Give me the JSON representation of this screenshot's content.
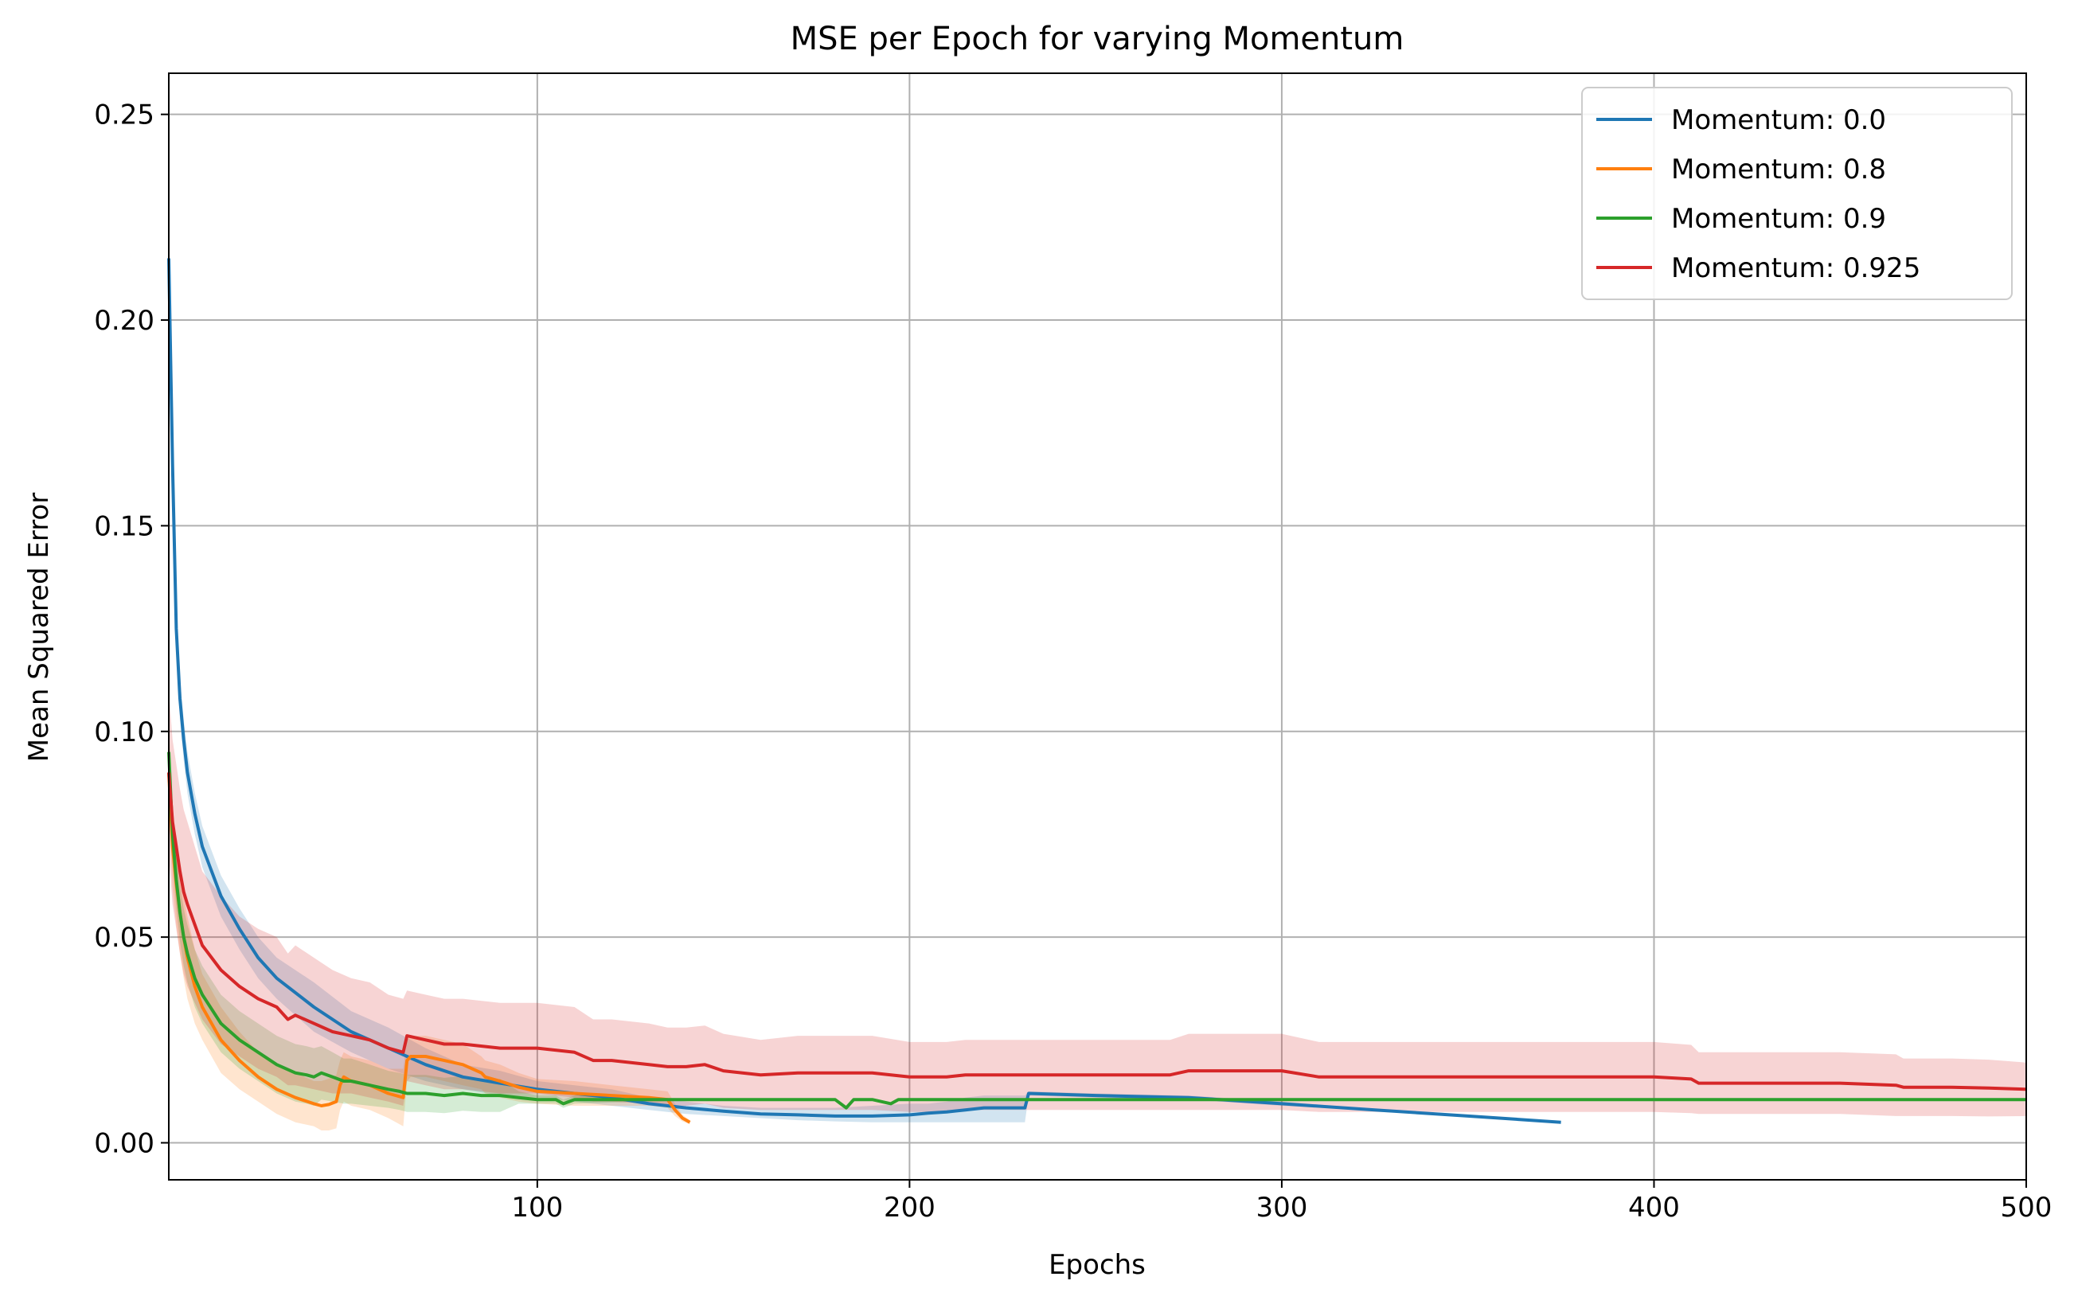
{
  "chart_data": {
    "type": "line",
    "title": "MSE per Epoch for varying Momentum",
    "xlabel": "Epochs",
    "ylabel": "Mean Squared Error",
    "xlim": [
      1,
      500
    ],
    "ylim": [
      -0.009,
      0.26
    ],
    "xticks": [
      100,
      200,
      300,
      400,
      500
    ],
    "xtick_labels": [
      "100",
      "200",
      "300",
      "400",
      "500"
    ],
    "yticks": [
      0.0,
      0.05,
      0.1,
      0.15,
      0.2,
      0.25
    ],
    "ytick_labels": [
      "0.00",
      "0.05",
      "0.10",
      "0.15",
      "0.20",
      "0.25"
    ],
    "grid": true,
    "legend_position": "top-right",
    "series": [
      {
        "name": "Momentum: 0.0",
        "color": "#1f77b4",
        "x": [
          1,
          2,
          3,
          4,
          5,
          6,
          8,
          10,
          15,
          20,
          25,
          30,
          40,
          50,
          60,
          70,
          80,
          90,
          100,
          110,
          120,
          130,
          140,
          150,
          160,
          170,
          180,
          190,
          200,
          205,
          210,
          215,
          220,
          225,
          231,
          232,
          250,
          275,
          300,
          325,
          350,
          375
        ],
        "y": [
          0.215,
          0.165,
          0.125,
          0.108,
          0.098,
          0.09,
          0.08,
          0.072,
          0.06,
          0.052,
          0.045,
          0.04,
          0.033,
          0.027,
          0.023,
          0.019,
          0.016,
          0.0145,
          0.013,
          0.012,
          0.011,
          0.0095,
          0.0085,
          0.0077,
          0.007,
          0.0068,
          0.0065,
          0.0065,
          0.0068,
          0.0072,
          0.0075,
          0.008,
          0.0085,
          0.0085,
          0.0085,
          0.012,
          0.0115,
          0.011,
          0.0095,
          0.008,
          0.0065,
          0.005
        ],
        "lower": [
          0.21,
          0.16,
          0.12,
          0.103,
          0.093,
          0.085,
          0.075,
          0.067,
          0.055,
          0.047,
          0.04,
          0.035,
          0.027,
          0.022,
          0.018,
          0.015,
          0.013,
          0.0115,
          0.011,
          0.01,
          0.009,
          0.008,
          0.007,
          0.0065,
          0.006,
          0.0055,
          0.0052,
          0.005,
          0.005,
          0.005,
          0.005,
          0.005,
          0.005,
          0.005,
          0.005,
          0.0115,
          0.011,
          0.0105,
          0.009,
          0.0078,
          0.0063,
          0.0048
        ],
        "upper": [
          0.22,
          0.17,
          0.13,
          0.113,
          0.103,
          0.095,
          0.085,
          0.077,
          0.065,
          0.057,
          0.05,
          0.045,
          0.039,
          0.032,
          0.028,
          0.023,
          0.019,
          0.0175,
          0.015,
          0.014,
          0.013,
          0.011,
          0.01,
          0.009,
          0.0085,
          0.0085,
          0.0085,
          0.009,
          0.0095,
          0.0095,
          0.01,
          0.011,
          0.0115,
          0.0115,
          0.0115,
          0.0125,
          0.012,
          0.0115,
          0.01,
          0.0082,
          0.0067,
          0.0052
        ]
      },
      {
        "name": "Momentum: 0.8",
        "color": "#ff7f0e",
        "x": [
          1,
          2,
          3,
          4,
          5,
          6,
          8,
          10,
          15,
          20,
          25,
          30,
          35,
          40,
          42,
          44,
          46,
          47,
          48,
          50,
          55,
          60,
          64,
          65,
          66,
          70,
          75,
          80,
          85,
          86,
          90,
          95,
          100,
          110,
          120,
          130,
          135,
          137,
          139,
          141
        ],
        "y": [
          0.09,
          0.072,
          0.063,
          0.056,
          0.05,
          0.045,
          0.038,
          0.033,
          0.025,
          0.02,
          0.016,
          0.013,
          0.011,
          0.0095,
          0.009,
          0.0093,
          0.01,
          0.014,
          0.016,
          0.015,
          0.014,
          0.012,
          0.011,
          0.02,
          0.021,
          0.021,
          0.02,
          0.019,
          0.017,
          0.016,
          0.015,
          0.0135,
          0.0125,
          0.012,
          0.0115,
          0.011,
          0.0105,
          0.008,
          0.006,
          0.005
        ],
        "lower": [
          0.08,
          0.062,
          0.053,
          0.046,
          0.04,
          0.035,
          0.029,
          0.025,
          0.017,
          0.013,
          0.01,
          0.007,
          0.005,
          0.004,
          0.003,
          0.003,
          0.0035,
          0.008,
          0.01,
          0.009,
          0.008,
          0.006,
          0.004,
          0.015,
          0.016,
          0.016,
          0.015,
          0.014,
          0.013,
          0.012,
          0.011,
          0.01,
          0.0095,
          0.009,
          0.009,
          0.009,
          0.0085,
          0.0065,
          0.0052,
          0.0045
        ],
        "upper": [
          0.1,
          0.082,
          0.073,
          0.066,
          0.06,
          0.055,
          0.047,
          0.041,
          0.033,
          0.027,
          0.022,
          0.019,
          0.017,
          0.015,
          0.015,
          0.0156,
          0.0165,
          0.02,
          0.022,
          0.021,
          0.02,
          0.018,
          0.018,
          0.025,
          0.026,
          0.026,
          0.025,
          0.024,
          0.021,
          0.02,
          0.019,
          0.017,
          0.0155,
          0.015,
          0.014,
          0.013,
          0.0125,
          0.0095,
          0.0068,
          0.0055
        ]
      },
      {
        "name": "Momentum: 0.9",
        "color": "#2ca02c",
        "x": [
          1,
          2,
          3,
          4,
          5,
          6,
          8,
          10,
          15,
          20,
          25,
          30,
          35,
          38,
          40,
          42,
          45,
          48,
          50,
          55,
          60,
          63,
          65,
          70,
          75,
          80,
          85,
          90,
          95,
          100,
          105,
          107,
          110,
          120,
          130,
          140,
          150,
          160,
          170,
          180,
          183,
          185,
          190,
          195,
          197,
          200,
          250,
          300,
          350,
          400,
          450,
          500
        ],
        "y": [
          0.095,
          0.075,
          0.064,
          0.056,
          0.05,
          0.046,
          0.04,
          0.036,
          0.029,
          0.025,
          0.022,
          0.019,
          0.017,
          0.0165,
          0.016,
          0.017,
          0.016,
          0.015,
          0.015,
          0.014,
          0.013,
          0.0125,
          0.012,
          0.012,
          0.0115,
          0.012,
          0.0115,
          0.0115,
          0.011,
          0.0105,
          0.0105,
          0.0095,
          0.0105,
          0.0105,
          0.0105,
          0.0105,
          0.0105,
          0.0105,
          0.0105,
          0.0105,
          0.0085,
          0.0105,
          0.0105,
          0.0095,
          0.0105,
          0.0105,
          0.0105,
          0.0105,
          0.0105,
          0.0105,
          0.0105,
          0.0105
        ],
        "lower": [
          0.088,
          0.068,
          0.057,
          0.049,
          0.043,
          0.039,
          0.033,
          0.029,
          0.022,
          0.018,
          0.015,
          0.012,
          0.01,
          0.0095,
          0.009,
          0.0105,
          0.01,
          0.0095,
          0.0095,
          0.009,
          0.0085,
          0.008,
          0.0075,
          0.0075,
          0.0072,
          0.0078,
          0.0075,
          0.0075,
          0.0095,
          0.0095,
          0.0095,
          0.0085,
          0.0095,
          0.0098,
          0.01,
          0.0102,
          0.0102,
          0.0102,
          0.0102,
          0.0102,
          0.0082,
          0.0102,
          0.0102,
          0.0092,
          0.0102,
          0.0102,
          0.0102,
          0.0102,
          0.0102,
          0.0102,
          0.0102,
          0.0102
        ],
        "upper": [
          0.102,
          0.082,
          0.071,
          0.063,
          0.057,
          0.053,
          0.047,
          0.043,
          0.036,
          0.032,
          0.029,
          0.026,
          0.024,
          0.0235,
          0.023,
          0.0235,
          0.022,
          0.0205,
          0.0205,
          0.019,
          0.0175,
          0.017,
          0.0165,
          0.0165,
          0.0158,
          0.0162,
          0.0155,
          0.0155,
          0.0125,
          0.0115,
          0.0115,
          0.0105,
          0.0115,
          0.0112,
          0.011,
          0.0108,
          0.0108,
          0.0108,
          0.0108,
          0.0108,
          0.0088,
          0.0108,
          0.0108,
          0.0098,
          0.0108,
          0.0108,
          0.0108,
          0.0108,
          0.0108,
          0.0108,
          0.0108,
          0.0108
        ]
      },
      {
        "name": "Momentum: 0.925",
        "color": "#d62728",
        "x": [
          1,
          2,
          3,
          4,
          5,
          6,
          8,
          10,
          15,
          20,
          25,
          30,
          33,
          35,
          40,
          45,
          50,
          55,
          60,
          64,
          65,
          70,
          75,
          80,
          90,
          100,
          110,
          115,
          120,
          130,
          135,
          140,
          145,
          150,
          160,
          170,
          175,
          180,
          190,
          200,
          210,
          215,
          220,
          250,
          270,
          275,
          300,
          310,
          350,
          400,
          410,
          412,
          450,
          465,
          467,
          480,
          490,
          500
        ],
        "y": [
          0.09,
          0.078,
          0.072,
          0.066,
          0.061,
          0.058,
          0.053,
          0.048,
          0.042,
          0.038,
          0.035,
          0.033,
          0.03,
          0.031,
          0.029,
          0.027,
          0.026,
          0.025,
          0.023,
          0.022,
          0.026,
          0.025,
          0.024,
          0.024,
          0.023,
          0.023,
          0.022,
          0.02,
          0.02,
          0.019,
          0.0185,
          0.0185,
          0.019,
          0.0175,
          0.0165,
          0.017,
          0.017,
          0.017,
          0.017,
          0.016,
          0.016,
          0.0165,
          0.0165,
          0.0165,
          0.0165,
          0.0175,
          0.0175,
          0.016,
          0.016,
          0.016,
          0.0155,
          0.0145,
          0.0145,
          0.014,
          0.0135,
          0.0135,
          0.0133,
          0.013
        ],
        "lower": [
          0.07,
          0.058,
          0.052,
          0.046,
          0.041,
          0.038,
          0.034,
          0.03,
          0.024,
          0.021,
          0.018,
          0.016,
          0.014,
          0.014,
          0.013,
          0.012,
          0.012,
          0.011,
          0.01,
          0.009,
          0.015,
          0.014,
          0.013,
          0.013,
          0.012,
          0.012,
          0.011,
          0.01,
          0.01,
          0.0095,
          0.009,
          0.009,
          0.0095,
          0.0085,
          0.008,
          0.008,
          0.008,
          0.008,
          0.008,
          0.0075,
          0.0075,
          0.008,
          0.008,
          0.008,
          0.008,
          0.008,
          0.008,
          0.0075,
          0.0075,
          0.0075,
          0.0072,
          0.007,
          0.007,
          0.0065,
          0.0065,
          0.0065,
          0.0064,
          0.0065
        ],
        "upper": [
          0.11,
          0.098,
          0.092,
          0.086,
          0.081,
          0.078,
          0.072,
          0.066,
          0.06,
          0.055,
          0.052,
          0.05,
          0.046,
          0.048,
          0.045,
          0.042,
          0.04,
          0.039,
          0.036,
          0.035,
          0.037,
          0.036,
          0.035,
          0.035,
          0.034,
          0.034,
          0.033,
          0.03,
          0.03,
          0.029,
          0.028,
          0.028,
          0.0285,
          0.0265,
          0.025,
          0.026,
          0.026,
          0.026,
          0.026,
          0.0245,
          0.0245,
          0.025,
          0.025,
          0.025,
          0.025,
          0.0265,
          0.0265,
          0.0245,
          0.0245,
          0.0245,
          0.0238,
          0.022,
          0.022,
          0.0215,
          0.0205,
          0.0205,
          0.0202,
          0.0195
        ]
      }
    ]
  }
}
